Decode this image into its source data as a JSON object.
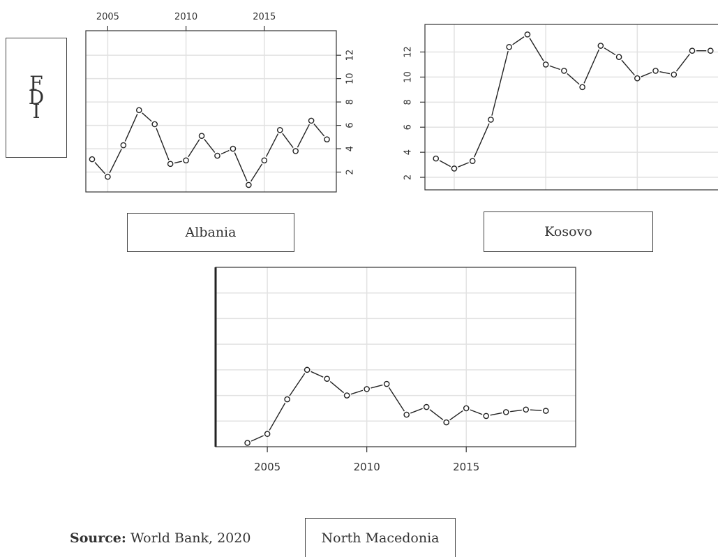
{
  "y_axis_label": "FDI",
  "source": {
    "bold": "Source:",
    "text": "World Bank, 2020"
  },
  "chart_data": [
    {
      "type": "line",
      "title": "Albania",
      "x": [
        2004,
        2005,
        2006,
        2007,
        2008,
        2009,
        2010,
        2011,
        2012,
        2013,
        2014,
        2015,
        2016,
        2017,
        2018,
        2019
      ],
      "values": [
        3.1,
        1.6,
        4.3,
        7.3,
        6.1,
        2.7,
        3.0,
        5.1,
        3.4,
        4.0,
        0.9,
        3.0,
        5.6,
        3.8,
        6.4,
        4.8
      ],
      "xlim": [
        2003.6,
        2019.6
      ],
      "ylim": [
        0.3,
        14.1
      ],
      "x_ticks": [
        2005,
        2010,
        2015
      ],
      "y_ticks": [
        2,
        4,
        6,
        8,
        10,
        12
      ],
      "x_axis_position": "top",
      "y_axis_position": "right",
      "grid": true
    },
    {
      "type": "line",
      "title": "Kosovo",
      "x": [
        2004,
        2005,
        2006,
        2007,
        2008,
        2009,
        2010,
        2011,
        2012,
        2013,
        2014,
        2015,
        2016,
        2017,
        2018,
        2019
      ],
      "values": [
        3.5,
        2.7,
        3.3,
        6.6,
        12.4,
        13.4,
        11.0,
        10.5,
        9.2,
        12.5,
        11.6,
        9.9,
        10.5,
        10.2,
        12.1,
        12.1
      ],
      "xlim": [
        2003.4,
        2019.6
      ],
      "ylim": [
        1.0,
        14.2
      ],
      "x_ticks": [
        2005,
        2010,
        2015
      ],
      "y_ticks": [
        2,
        4,
        6,
        8,
        10,
        12
      ],
      "x_axis_position": "none",
      "y_axis_position": "left",
      "grid": true
    },
    {
      "type": "line",
      "title": "North Macedonia",
      "x": [
        2004,
        2005,
        2006,
        2007,
        2008,
        2009,
        2010,
        2011,
        2012,
        2013,
        2014,
        2015,
        2016,
        2017,
        2018,
        2019
      ],
      "values": [
        0.3,
        1.0,
        3.7,
        6.0,
        5.3,
        4.0,
        4.5,
        4.9,
        2.5,
        3.1,
        1.9,
        3.0,
        2.4,
        2.7,
        2.9,
        2.8
      ],
      "xlim": [
        2002.4,
        2020.5
      ],
      "ylim": [
        0.0,
        14.0
      ],
      "x_ticks": [
        2005,
        2010,
        2015
      ],
      "y_ticks": [
        2,
        4,
        6,
        8,
        10,
        12
      ],
      "x_axis_position": "bottom",
      "y_axis_position": "none",
      "grid": true
    }
  ]
}
